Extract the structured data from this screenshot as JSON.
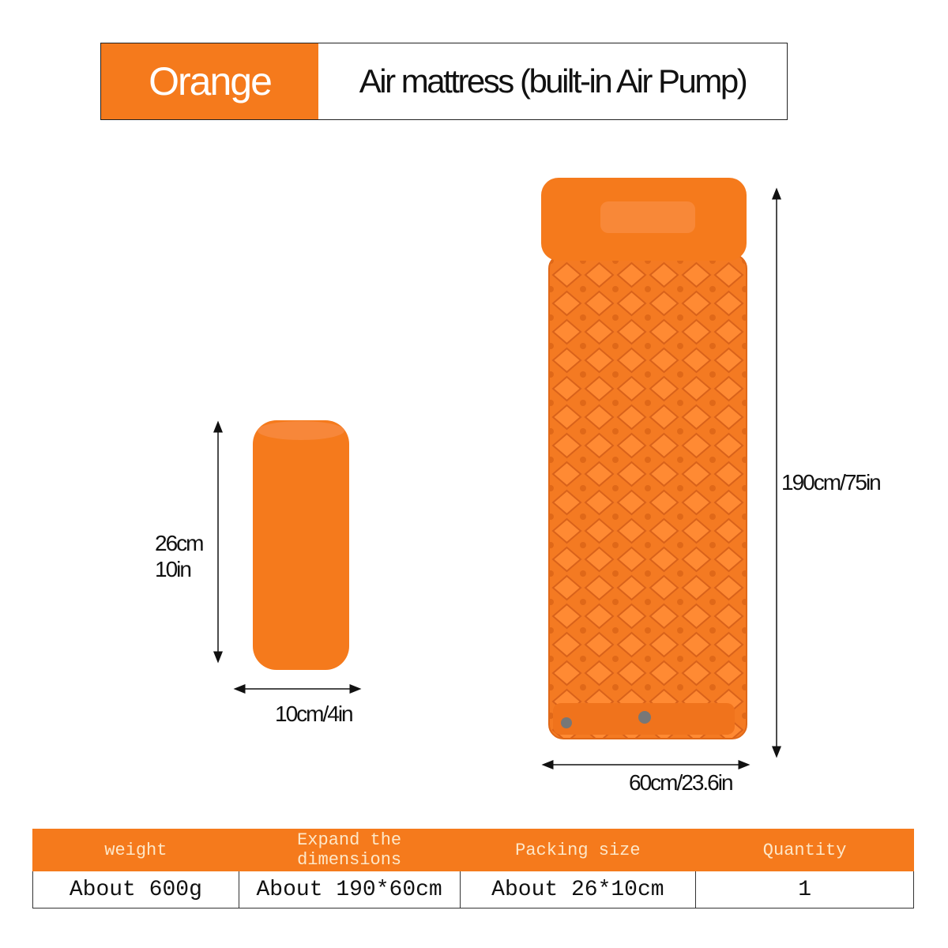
{
  "header": {
    "color_label": "Orange",
    "product_title": "Air mattress (built-in Air Pump)"
  },
  "colors": {
    "accent": "#f57a1c"
  },
  "dimensions": {
    "packed_height": "26cm",
    "packed_height_in": "10in",
    "packed_width": "10cm/4in",
    "mattress_length": "190cm/75in",
    "mattress_width": "60cm/23.6in"
  },
  "table": {
    "headers": [
      "weight",
      "Expand the dimensions",
      "Packing size",
      "Quantity"
    ],
    "values": [
      "About 600g",
      "About 190*60cm",
      "About 26*10cm",
      "1"
    ]
  }
}
